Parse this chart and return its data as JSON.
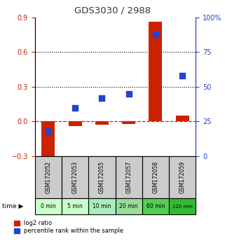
{
  "title": "GDS3030 / 2988",
  "samples": [
    "GSM172052",
    "GSM172053",
    "GSM172055",
    "GSM172057",
    "GSM172058",
    "GSM172059"
  ],
  "time_labels": [
    "0 min",
    "5 min",
    "10 min",
    "20 min",
    "60 min",
    "120 min"
  ],
  "log2_ratio": [
    -0.34,
    -0.04,
    -0.03,
    -0.02,
    0.86,
    0.05
  ],
  "percentile_rank": [
    18,
    35,
    42,
    45,
    88,
    58
  ],
  "left_ylim": [
    -0.3,
    0.9
  ],
  "right_ylim": [
    0,
    100
  ],
  "left_yticks": [
    -0.3,
    0.0,
    0.3,
    0.6,
    0.9
  ],
  "right_yticks": [
    0,
    25,
    50,
    75,
    100
  ],
  "hlines": [
    0.3,
    0.6
  ],
  "bar_color": "#cc2200",
  "dot_color": "#2244cc",
  "zero_line_color": "#cc2200",
  "title_color": "#333333",
  "time_colors": [
    "#ccffcc",
    "#ccffcc",
    "#aaeebb",
    "#99dd99",
    "#55cc55",
    "#33bb33"
  ],
  "sample_bg_color": "#cccccc",
  "bar_width": 0.5,
  "dot_size": 40,
  "left_tick_color": "#cc2200",
  "right_tick_color": "#2244cc"
}
